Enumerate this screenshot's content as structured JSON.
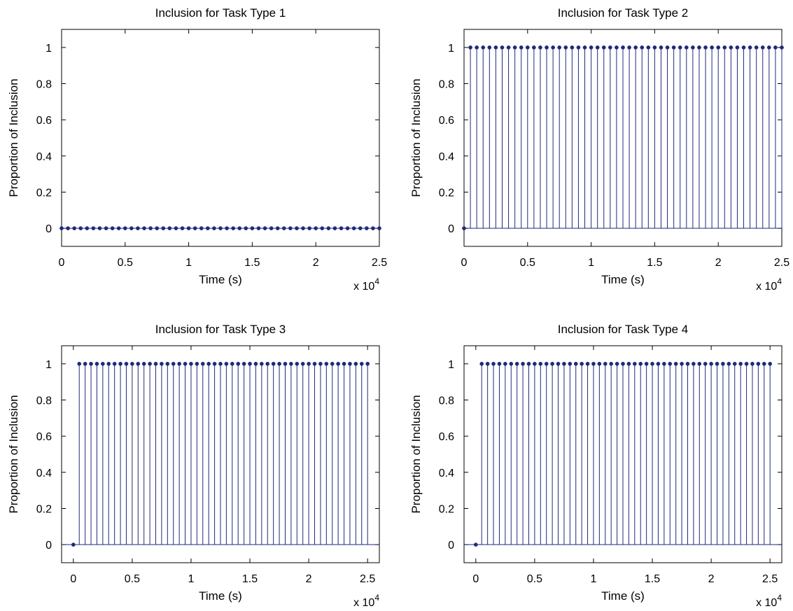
{
  "chart_data": [
    {
      "type": "stem",
      "title": "Inclusion for Task Type 1",
      "xlabel": "Time (s)",
      "ylabel": "Proportion of Inclusion",
      "x_multiplier_label": "x 10",
      "x_multiplier_exp": "4",
      "xlim": [
        0,
        2.5
      ],
      "ylim": [
        -0.1,
        1.1
      ],
      "xticks": [
        "0",
        "0.5",
        "1",
        "1.5",
        "2",
        "2.5"
      ],
      "yticks": [
        "0",
        "0.2",
        "0.4",
        "0.6",
        "0.8",
        "1"
      ],
      "series": [
        {
          "x_start": 0,
          "x_step": 0.05,
          "count": 51,
          "first_value": 0,
          "value": 0
        }
      ],
      "color": "#1f2a78",
      "grid": false
    },
    {
      "type": "stem",
      "title": "Inclusion for Task Type 2",
      "xlabel": "Time (s)",
      "ylabel": "Proportion of Inclusion",
      "x_multiplier_label": "x 10",
      "x_multiplier_exp": "4",
      "xlim": [
        0,
        2.5
      ],
      "ylim": [
        -0.1,
        1.1
      ],
      "xticks": [
        "0",
        "0.5",
        "1",
        "1.5",
        "2",
        "2.5"
      ],
      "yticks": [
        "0",
        "0.2",
        "0.4",
        "0.6",
        "0.8",
        "1"
      ],
      "series": [
        {
          "x_start": 0,
          "x_step": 0.05,
          "count": 51,
          "first_value": 0,
          "value": 1
        }
      ],
      "color": "#1f2a78",
      "grid": false
    },
    {
      "type": "stem",
      "title": "Inclusion for Task Type 3",
      "xlabel": "Time (s)",
      "ylabel": "Proportion of Inclusion",
      "x_multiplier_label": "x 10",
      "x_multiplier_exp": "4",
      "xlim": [
        -0.1,
        2.6
      ],
      "ylim": [
        -0.1,
        1.1
      ],
      "xticks": [
        "0",
        "0.5",
        "1",
        "1.5",
        "2",
        "2.5"
      ],
      "yticks": [
        "0",
        "0.2",
        "0.4",
        "0.6",
        "0.8",
        "1"
      ],
      "series": [
        {
          "x_start": 0,
          "x_step": 0.05,
          "count": 51,
          "first_value": 0,
          "value": 1
        }
      ],
      "color": "#1f2a78",
      "grid": false
    },
    {
      "type": "stem",
      "title": "Inclusion for Task Type 4",
      "xlabel": "Time (s)",
      "ylabel": "Proportion of Inclusion",
      "x_multiplier_label": "x 10",
      "x_multiplier_exp": "4",
      "xlim": [
        -0.1,
        2.6
      ],
      "ylim": [
        -0.1,
        1.1
      ],
      "xticks": [
        "0",
        "0.5",
        "1",
        "1.5",
        "2",
        "2.5"
      ],
      "yticks": [
        "0",
        "0.2",
        "0.4",
        "0.6",
        "0.8",
        "1"
      ],
      "series": [
        {
          "x_start": 0,
          "x_step": 0.05,
          "count": 51,
          "first_value": 0,
          "value": 1
        }
      ],
      "color": "#1f2a78",
      "grid": false
    }
  ]
}
